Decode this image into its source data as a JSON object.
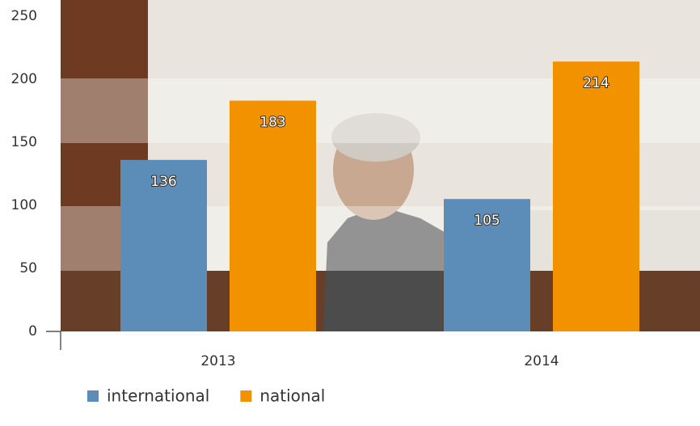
{
  "chart_data": {
    "type": "bar",
    "categories": [
      "2013",
      "2014"
    ],
    "series": [
      {
        "name": "international",
        "color": "#5b8db8",
        "values": [
          136,
          105
        ]
      },
      {
        "name": "national",
        "color": "#f39200",
        "values": [
          183,
          214
        ]
      }
    ],
    "ylim": [
      0,
      250
    ],
    "yticks": [
      0,
      50,
      100,
      150,
      200,
      250
    ],
    "legend": "bottom-left"
  }
}
